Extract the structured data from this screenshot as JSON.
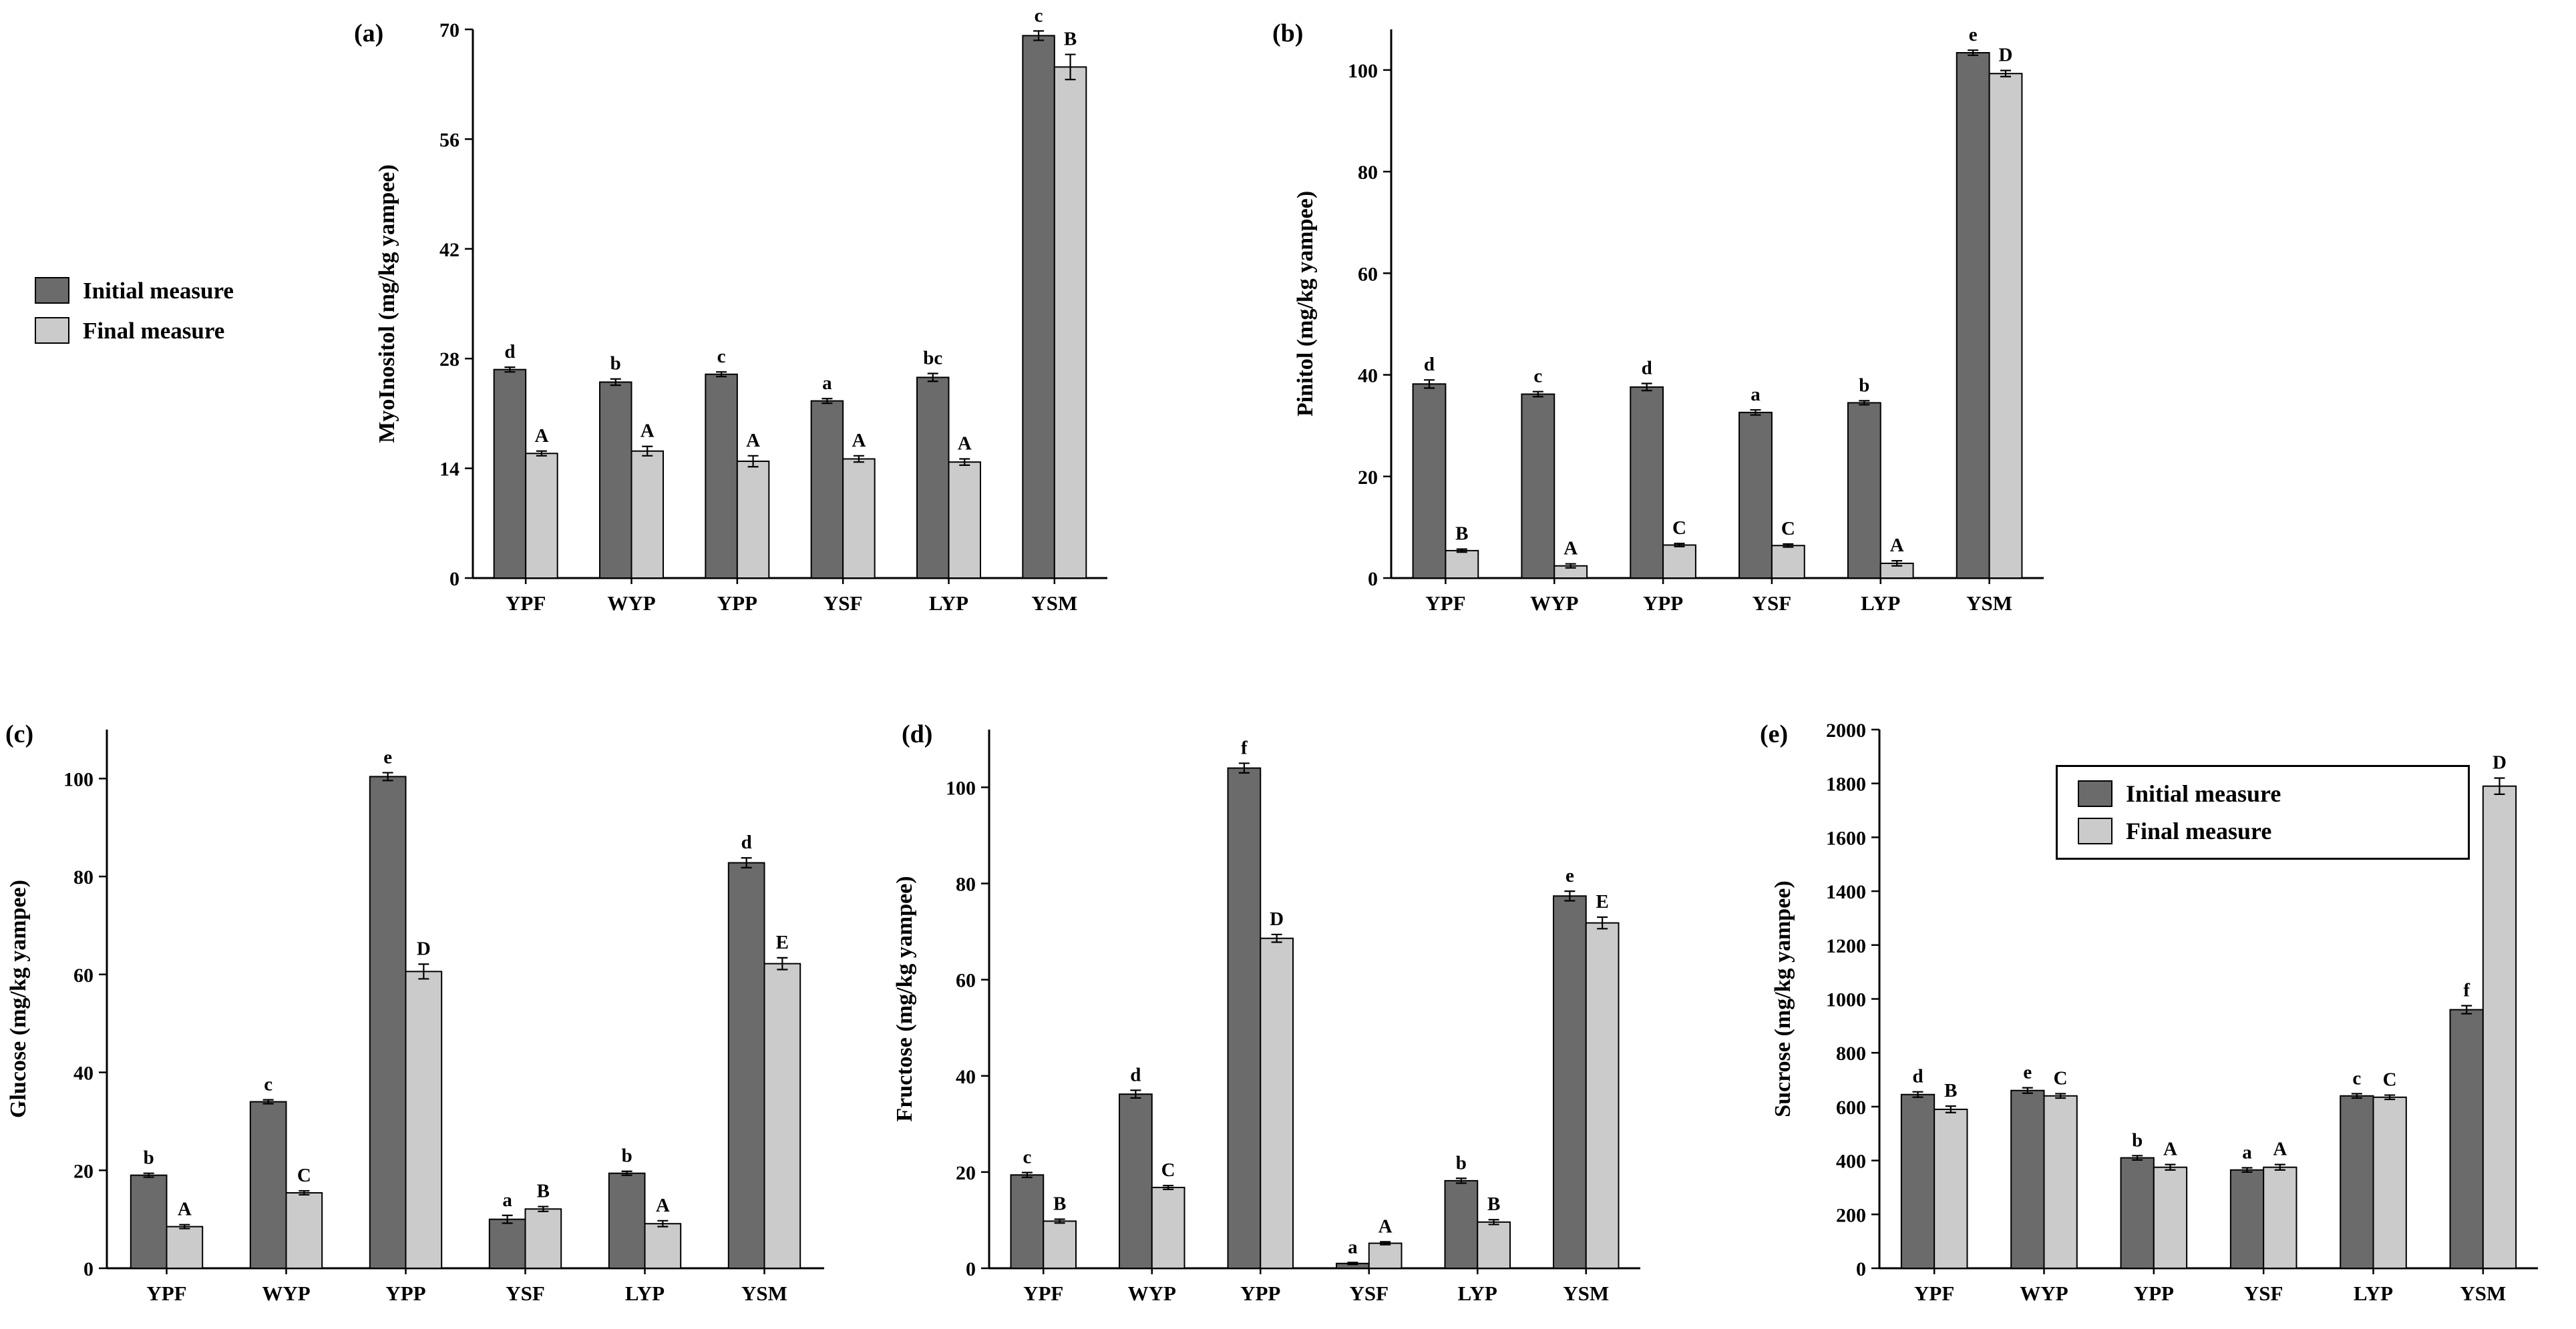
{
  "figure": {
    "legend": {
      "initial": "Initial measure",
      "final": "Final measure"
    },
    "colors": {
      "initial": "#6b6b6b",
      "final": "#cbcbcb",
      "axis": "#000000",
      "background": "#ffffff"
    }
  },
  "chart_data": [
    {
      "id": "a",
      "panel_label": "(a)",
      "type": "bar",
      "title": "",
      "xlabel": "",
      "ylabel": "MyoInositol (mg/kg yampee)",
      "categories": [
        "YPF",
        "WYP",
        "YPP",
        "YSF",
        "LYP",
        "YSM"
      ],
      "yticks": [
        0,
        14,
        28,
        42,
        56,
        70
      ],
      "ylim": [
        0,
        70
      ],
      "grid": false,
      "legend_position": "outside-left",
      "series": [
        {
          "name": "Initial measure",
          "values": [
            26.6,
            25.0,
            26.0,
            22.6,
            25.6,
            69.2
          ],
          "errors": [
            0.3,
            0.4,
            0.3,
            0.3,
            0.5,
            0.6
          ],
          "letters": [
            "d",
            "b",
            "c",
            "a",
            "bc",
            "c"
          ]
        },
        {
          "name": "Final measure",
          "values": [
            15.9,
            16.2,
            14.9,
            15.2,
            14.8,
            65.2
          ],
          "errors": [
            0.3,
            0.6,
            0.7,
            0.4,
            0.4,
            1.6
          ],
          "letters": [
            "A",
            "A",
            "A",
            "A",
            "A",
            "B"
          ]
        }
      ]
    },
    {
      "id": "b",
      "panel_label": "(b)",
      "type": "bar",
      "title": "",
      "xlabel": "",
      "ylabel": "Pinitol (mg/kg yampee)",
      "categories": [
        "YPF",
        "WYP",
        "YPP",
        "YSF",
        "LYP",
        "YSM"
      ],
      "yticks": [
        0,
        20,
        40,
        60,
        80,
        100
      ],
      "ylim": [
        0,
        108
      ],
      "grid": false,
      "legend_position": "none",
      "series": [
        {
          "name": "Initial measure",
          "values": [
            38.2,
            36.2,
            37.6,
            32.6,
            34.5,
            103.4
          ],
          "errors": [
            0.8,
            0.5,
            0.7,
            0.5,
            0.4,
            0.5
          ],
          "letters": [
            "d",
            "c",
            "d",
            "a",
            "b",
            "e"
          ]
        },
        {
          "name": "Final measure",
          "values": [
            5.4,
            2.4,
            6.5,
            6.4,
            2.9,
            99.3
          ],
          "errors": [
            0.3,
            0.4,
            0.3,
            0.3,
            0.5,
            0.6
          ],
          "letters": [
            "B",
            "A",
            "C",
            "C",
            "A",
            "D"
          ]
        }
      ]
    },
    {
      "id": "c",
      "panel_label": "(c)",
      "type": "bar",
      "title": "",
      "xlabel": "",
      "ylabel": "Glucose (mg/kg yampee)",
      "categories": [
        "YPF",
        "WYP",
        "YPP",
        "YSF",
        "LYP",
        "YSM"
      ],
      "yticks": [
        0,
        20,
        40,
        60,
        80,
        100
      ],
      "ylim": [
        0,
        110
      ],
      "grid": false,
      "legend_position": "none",
      "series": [
        {
          "name": "Initial measure",
          "values": [
            19.0,
            34.0,
            100.4,
            10.0,
            19.4,
            82.8
          ],
          "errors": [
            0.4,
            0.4,
            0.8,
            0.8,
            0.4,
            1.0
          ],
          "letters": [
            "b",
            "c",
            "e",
            "a",
            "b",
            "d"
          ]
        },
        {
          "name": "Final measure",
          "values": [
            8.5,
            15.4,
            60.6,
            12.1,
            9.1,
            62.2
          ],
          "errors": [
            0.4,
            0.4,
            1.5,
            0.5,
            0.6,
            1.2
          ],
          "letters": [
            "A",
            "C",
            "D",
            "B",
            "A",
            "E"
          ]
        }
      ]
    },
    {
      "id": "d",
      "panel_label": "(d)",
      "type": "bar",
      "title": "",
      "xlabel": "",
      "ylabel": "Fructose (mg/kg yampee)",
      "categories": [
        "YPF",
        "WYP",
        "YPP",
        "YSF",
        "LYP",
        "YSM"
      ],
      "yticks": [
        0,
        20,
        40,
        60,
        80,
        100
      ],
      "ylim": [
        0,
        112
      ],
      "grid": false,
      "legend_position": "none",
      "series": [
        {
          "name": "Initial measure",
          "values": [
            19.4,
            36.2,
            104.0,
            1.0,
            18.2,
            77.4
          ],
          "errors": [
            0.5,
            0.8,
            1.0,
            0.2,
            0.5,
            1.0
          ],
          "letters": [
            "c",
            "d",
            "f",
            "a",
            "b",
            "e"
          ]
        },
        {
          "name": "Final measure",
          "values": [
            9.8,
            16.8,
            68.6,
            5.2,
            9.6,
            71.8
          ],
          "errors": [
            0.4,
            0.4,
            0.8,
            0.3,
            0.5,
            1.2
          ],
          "letters": [
            "B",
            "C",
            "D",
            "A",
            "B",
            "E"
          ]
        }
      ]
    },
    {
      "id": "e",
      "panel_label": "(e)",
      "type": "bar",
      "title": "",
      "xlabel": "",
      "ylabel": "Sucrose (mg/kg yampee)",
      "categories": [
        "YPF",
        "WYP",
        "YPP",
        "YSF",
        "LYP",
        "YSM"
      ],
      "yticks": [
        0,
        200,
        400,
        600,
        800,
        1000,
        1200,
        1400,
        1600,
        1800,
        2000
      ],
      "ylim": [
        0,
        2000
      ],
      "grid": false,
      "legend_position": "inside-top-right",
      "series": [
        {
          "name": "Initial measure",
          "values": [
            645,
            660,
            410,
            365,
            640,
            960
          ],
          "errors": [
            10,
            10,
            8,
            8,
            8,
            15
          ],
          "letters": [
            "d",
            "e",
            "b",
            "a",
            "c",
            "f"
          ]
        },
        {
          "name": "Final measure",
          "values": [
            590,
            640,
            375,
            375,
            635,
            1790
          ],
          "errors": [
            12,
            8,
            10,
            10,
            8,
            30
          ],
          "letters": [
            "B",
            "C",
            "A",
            "A",
            "C",
            "D"
          ]
        }
      ]
    }
  ]
}
